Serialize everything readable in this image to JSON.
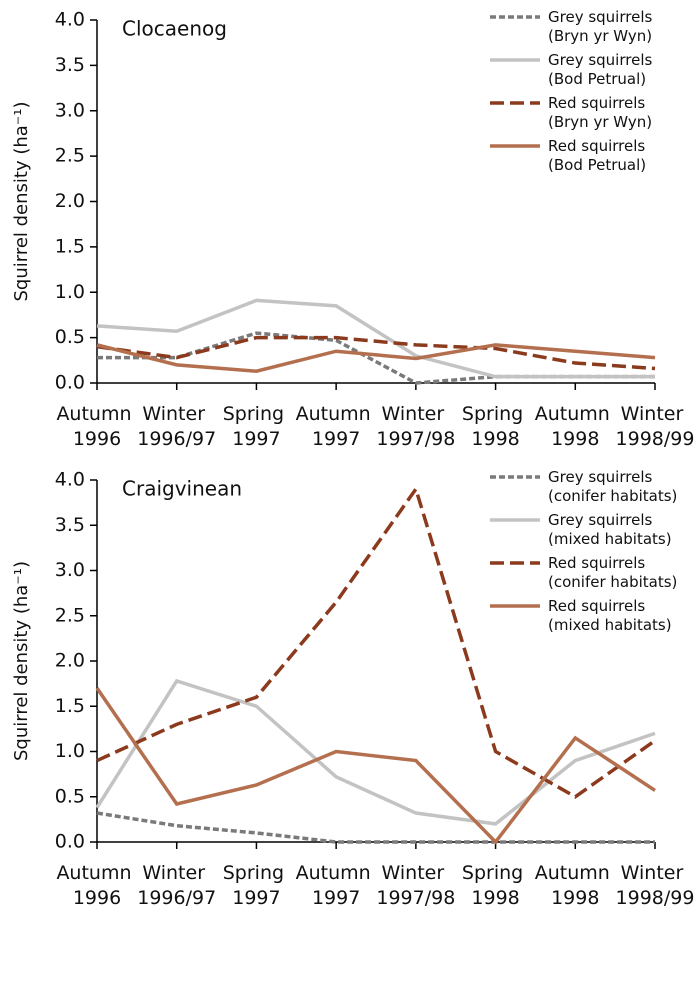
{
  "chart_data": [
    {
      "type": "line",
      "title": "Clocaenog",
      "y_label": "Squirrel density (ha⁻¹)",
      "categories": [
        "Autumn 1996",
        "Winter 1996/97",
        "Spring 1997",
        "Autumn 1997",
        "Winter 1997/98",
        "Spring 1998",
        "Autumn 1998",
        "Winter 1998/99"
      ],
      "ylim": [
        0,
        4
      ],
      "yticks": [
        {
          "value": 0,
          "label": "0.0"
        },
        0.5,
        {
          "value": 1,
          "label": "1.0"
        },
        1.5,
        {
          "value": 2,
          "label": "2.0"
        },
        2.5,
        {
          "value": 3,
          "label": "3.0"
        },
        3.5,
        {
          "value": 4,
          "label": "4.0"
        }
      ],
      "legend": "top-right",
      "series": [
        {
          "name": "Grey squirrels (Bryn yr Wyn)",
          "color": "#7a7a7a",
          "style": "short-dash",
          "values": [
            0.28,
            0.28,
            0.55,
            0.47,
            0.0,
            0.07,
            0.07,
            0.07
          ]
        },
        {
          "name": "Grey squirrels (Bod Petrual)",
          "color": "#c3c3c3",
          "style": "solid",
          "values": [
            0.63,
            0.57,
            0.91,
            0.85,
            0.3,
            0.07,
            0.07,
            0.07
          ]
        },
        {
          "name": "Red squirrels (Bryn yr Wyn)",
          "color": "#8b3a1e",
          "style": "long-dash",
          "values": [
            0.4,
            0.28,
            0.5,
            0.5,
            0.42,
            0.38,
            0.22,
            0.16
          ]
        },
        {
          "name": "Red squirrels (Bod Petrual)",
          "color": "#b36f4e",
          "style": "solid",
          "values": [
            0.42,
            0.2,
            0.13,
            0.35,
            0.27,
            0.42,
            0.35,
            0.28
          ]
        }
      ]
    },
    {
      "type": "line",
      "title": "Craigvinean",
      "y_label": "Squirrel density (ha⁻¹)",
      "categories": [
        "Autumn 1996",
        "Winter 1996/97",
        "Spring 1997",
        "Autumn 1997",
        "Winter 1997/98",
        "Spring 1998",
        "Autumn 1998",
        "Winter 1998/99"
      ],
      "ylim": [
        0,
        4
      ],
      "yticks": [
        {
          "value": 0,
          "label": "0.0"
        },
        0.5,
        {
          "value": 1,
          "label": "1.0"
        },
        1.5,
        {
          "value": 2,
          "label": "2.0"
        },
        2.5,
        {
          "value": 3,
          "label": "3.0"
        },
        3.5,
        {
          "value": 4,
          "label": "4.0"
        }
      ],
      "legend": "top-right",
      "series": [
        {
          "name": "Grey squirrels (conifer habitats)",
          "color": "#7a7a7a",
          "style": "short-dash",
          "values": [
            0.32,
            0.18,
            0.1,
            0,
            0,
            0,
            0,
            0
          ]
        },
        {
          "name": "Grey squirrels (mixed habitats)",
          "color": "#c3c3c3",
          "style": "solid",
          "values": [
            0.38,
            1.78,
            1.5,
            0.72,
            0.32,
            0.2,
            0.9,
            1.2
          ]
        },
        {
          "name": "Red squirrels (conifer habitats)",
          "color": "#8b3a1e",
          "style": "long-dash",
          "values": [
            0.9,
            1.3,
            1.6,
            2.65,
            3.9,
            1.0,
            0.5,
            1.12
          ]
        },
        {
          "name": "Red squirrels (mixed habitats)",
          "color": "#b36f4e",
          "style": "solid",
          "values": [
            1.7,
            0.42,
            0.63,
            1.0,
            0.9,
            0,
            1.15,
            0.57
          ]
        }
      ]
    }
  ]
}
